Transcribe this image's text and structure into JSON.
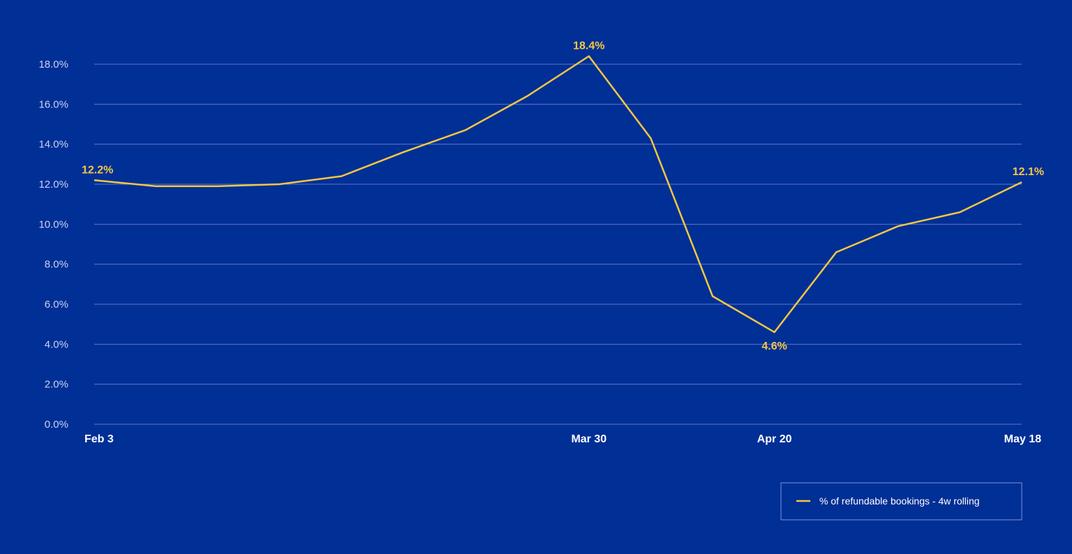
{
  "chart_data": {
    "type": "line",
    "ylim": [
      0,
      18
    ],
    "y_ticks": [
      "0.0%",
      "2.0%",
      "4.0%",
      "6.0%",
      "8.0%",
      "10.0%",
      "12.0%",
      "14.0%",
      "16.0%",
      "18.0%"
    ],
    "x_tick_labels": [
      "Feb 3",
      "Mar 30",
      "Apr 20",
      "May 18"
    ],
    "x_tick_positions": [
      0,
      8,
      11,
      15
    ],
    "grid": true,
    "legend_position": "bottom-right",
    "colors": {
      "background": "#002f96",
      "line": "#f5c840",
      "grid": "#5d78c8"
    },
    "series": [
      {
        "name": "% of refundable bookings - 4w rolling",
        "x": [
          0,
          1,
          2,
          3,
          4,
          5,
          6,
          7,
          8,
          9,
          10,
          11,
          12,
          13,
          14,
          15
        ],
        "values": [
          12.2,
          11.9,
          11.9,
          12.0,
          12.4,
          13.6,
          14.7,
          16.4,
          18.4,
          14.3,
          6.4,
          4.6,
          8.6,
          9.9,
          10.6,
          12.1
        ]
      }
    ],
    "annotations": [
      {
        "index": 0,
        "text": "12.2%",
        "anchor": "above-right"
      },
      {
        "index": 8,
        "text": "18.4%",
        "anchor": "above"
      },
      {
        "index": 11,
        "text": "4.6%",
        "anchor": "below"
      },
      {
        "index": 15,
        "text": "12.1%",
        "anchor": "above-left"
      }
    ]
  }
}
